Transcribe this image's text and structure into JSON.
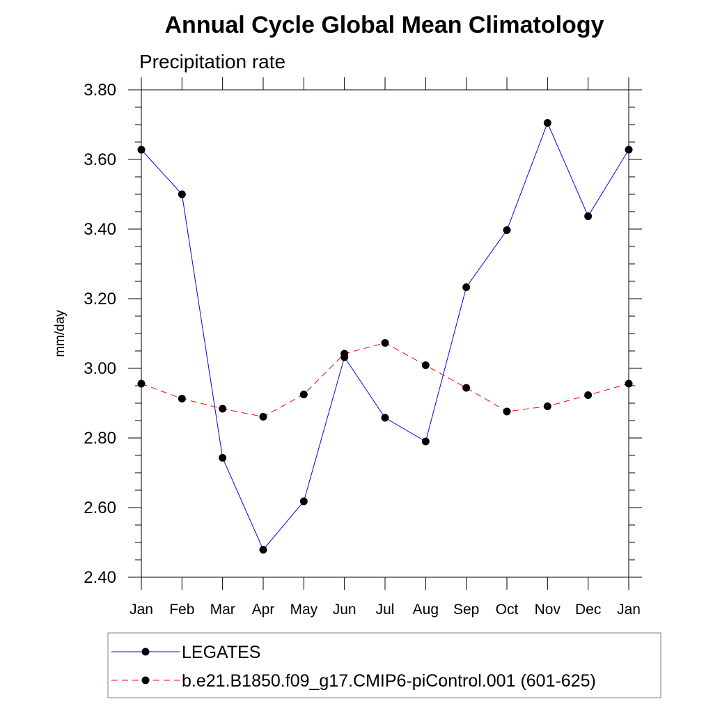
{
  "chart_data": {
    "type": "line",
    "title": "Annual Cycle Global Mean Climatology",
    "subtitle": "Precipitation rate",
    "xlabel": "",
    "ylabel": "mm/day",
    "categories": [
      "Jan",
      "Feb",
      "Mar",
      "Apr",
      "May",
      "Jun",
      "Jul",
      "Aug",
      "Sep",
      "Oct",
      "Nov",
      "Dec",
      "Jan"
    ],
    "ylim": [
      2.4,
      3.8
    ],
    "yticks": [
      "2.40",
      "2.60",
      "2.80",
      "3.00",
      "3.20",
      "3.40",
      "3.60",
      "3.80"
    ],
    "grid": false,
    "legend_position": "bottom",
    "series": [
      {
        "name": "LEGATES",
        "color": "#0000ff",
        "line_style": "solid",
        "marker": "filled-circle",
        "values": [
          3.628,
          3.5,
          2.743,
          2.479,
          2.618,
          3.032,
          2.858,
          2.79,
          3.233,
          3.397,
          3.705,
          3.437,
          3.628
        ]
      },
      {
        "name": "b.e21.B1850.f09_g17.CMIP6-piControl.001 (601-625)",
        "color": "#ff0000",
        "line_style": "dashed",
        "marker": "filled-circle",
        "values": [
          2.956,
          2.913,
          2.884,
          2.861,
          2.925,
          3.042,
          3.073,
          3.009,
          2.944,
          2.876,
          2.891,
          2.923,
          2.956
        ]
      }
    ]
  }
}
